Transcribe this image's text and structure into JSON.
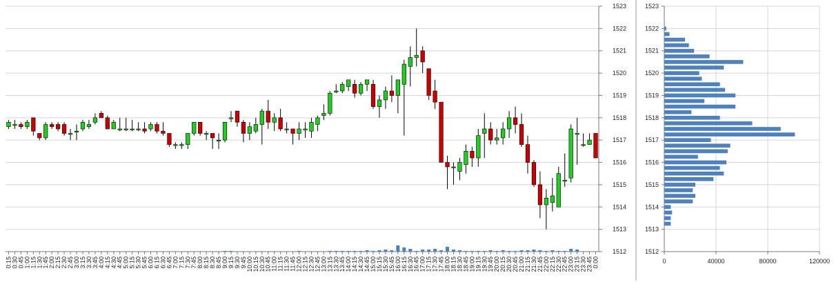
{
  "chart_data": [
    {
      "type": "candlestick",
      "y_ticks": [
        "1512",
        "1513",
        "1514",
        "1515",
        "1516",
        "1517",
        "1518",
        "1519",
        "1520",
        "1521",
        "1522",
        "1523"
      ],
      "ylim": [
        1512,
        1523
      ],
      "grid": true,
      "colors": {
        "up": "#22cc22",
        "down": "#cc0000",
        "volume": "#4f81bd",
        "wick": "#000000"
      },
      "x_labels": [
        "0:15",
        "0:30",
        "0:45",
        "1:00",
        "1:15",
        "1:30",
        "1:45",
        "2:00",
        "2:15",
        "2:30",
        "2:45",
        "3:00",
        "3:15",
        "3:30",
        "3:45",
        "4:00",
        "4:15",
        "4:30",
        "4:45",
        "5:00",
        "5:15",
        "5:30",
        "5:45",
        "6:00",
        "6:15",
        "6:30",
        "6:45",
        "7:00",
        "7:15",
        "7:30",
        "7:45",
        "8:00",
        "8:15",
        "8:30",
        "8:45",
        "9:00",
        "9:15",
        "9:30",
        "9:45",
        "10:00",
        "10:15",
        "10:30",
        "10:45",
        "11:00",
        "11:15",
        "11:30",
        "11:45",
        "12:00",
        "12:15",
        "12:30",
        "12:45",
        "13:00",
        "13:15",
        "13:30",
        "13:45",
        "14:00",
        "14:15",
        "14:30",
        "14:45",
        "15:00",
        "15:15",
        "15:30",
        "15:45",
        "16:00",
        "16:15",
        "16:30",
        "16:45",
        "17:00",
        "17:15",
        "17:30",
        "17:45",
        "18:00",
        "18:15",
        "18:30",
        "18:45",
        "19:00",
        "19:15",
        "19:30",
        "19:45",
        "20:00",
        "20:15",
        "20:30",
        "20:45",
        "21:00",
        "21:15",
        "21:30",
        "21:45",
        "22:00",
        "22:15",
        "22:30",
        "22:45",
        "23:00",
        "23:15",
        "23:30",
        "23:45",
        "0:00"
      ],
      "ohlc": [
        [
          1517.6,
          1517.9,
          1517.5,
          1517.8
        ],
        [
          1517.7,
          1517.9,
          1517.5,
          1517.7
        ],
        [
          1517.7,
          1517.8,
          1517.5,
          1517.6
        ],
        [
          1517.6,
          1517.9,
          1517.5,
          1517.8
        ],
        [
          1518.0,
          1518.0,
          1517.2,
          1517.4
        ],
        [
          1517.3,
          1517.3,
          1517.0,
          1517.1
        ],
        [
          1517.1,
          1517.8,
          1517.0,
          1517.7
        ],
        [
          1517.7,
          1517.8,
          1517.5,
          1517.6
        ],
        [
          1517.7,
          1517.8,
          1517.4,
          1517.5
        ],
        [
          1517.7,
          1517.8,
          1517.2,
          1517.3
        ],
        [
          1517.3,
          1517.5,
          1517.0,
          1517.3
        ],
        [
          1517.4,
          1517.7,
          1517.0,
          1517.4
        ],
        [
          1517.5,
          1517.9,
          1517.4,
          1517.8
        ],
        [
          1517.6,
          1517.9,
          1517.5,
          1517.7
        ],
        [
          1517.8,
          1518.2,
          1517.7,
          1518.0
        ],
        [
          1518.2,
          1518.3,
          1518.1,
          1518.0
        ],
        [
          1518.0,
          1518.1,
          1517.5,
          1517.5
        ],
        [
          1517.5,
          1517.9,
          1517.5,
          1517.8
        ],
        [
          1517.5,
          1518.0,
          1517.4,
          1517.5
        ],
        [
          1517.5,
          1518.0,
          1517.4,
          1517.5
        ],
        [
          1517.5,
          1517.9,
          1517.4,
          1517.5
        ],
        [
          1517.5,
          1517.8,
          1517.4,
          1517.5
        ],
        [
          1517.5,
          1517.8,
          1517.3,
          1517.4
        ],
        [
          1517.5,
          1517.8,
          1517.4,
          1517.7
        ],
        [
          1517.7,
          1517.8,
          1517.3,
          1517.4
        ],
        [
          1517.4,
          1517.8,
          1517.2,
          1517.3
        ],
        [
          1517.3,
          1517.3,
          1516.7,
          1516.8
        ],
        [
          1516.8,
          1516.9,
          1516.6,
          1516.8
        ],
        [
          1516.8,
          1516.9,
          1516.6,
          1516.8
        ],
        [
          1516.8,
          1517.3,
          1516.6,
          1517.3
        ],
        [
          1517.3,
          1517.8,
          1517.2,
          1517.8
        ],
        [
          1517.8,
          1517.8,
          1517.2,
          1517.3
        ],
        [
          1517.3,
          1517.4,
          1517.0,
          1517.3
        ],
        [
          1517.3,
          1517.3,
          1516.6,
          1517.1
        ],
        [
          1517.0,
          1517.3,
          1516.6,
          1517.0
        ],
        [
          1517.0,
          1517.8,
          1516.9,
          1517.8
        ],
        [
          1518.0,
          1518.3,
          1517.8,
          1518.0
        ],
        [
          1518.3,
          1518.3,
          1517.6,
          1517.8
        ],
        [
          1517.8,
          1517.9,
          1516.9,
          1517.3
        ],
        [
          1517.3,
          1517.8,
          1517.0,
          1517.6
        ],
        [
          1517.4,
          1518.0,
          1517.3,
          1517.7
        ],
        [
          1517.7,
          1518.4,
          1516.8,
          1518.3
        ],
        [
          1518.3,
          1518.8,
          1517.5,
          1517.8
        ],
        [
          1517.8,
          1518.2,
          1517.4,
          1518.0
        ],
        [
          1518.0,
          1518.4,
          1517.4,
          1517.5
        ],
        [
          1517.5,
          1517.8,
          1517.3,
          1517.5
        ],
        [
          1517.5,
          1517.5,
          1516.8,
          1517.3
        ],
        [
          1517.3,
          1517.8,
          1517.0,
          1517.5
        ],
        [
          1517.5,
          1517.8,
          1517.1,
          1517.5
        ],
        [
          1517.4,
          1518.0,
          1517.1,
          1517.8
        ],
        [
          1517.7,
          1518.1,
          1517.4,
          1518.0
        ],
        [
          1518.1,
          1518.6,
          1517.9,
          1518.2
        ],
        [
          1518.2,
          1519.2,
          1518.1,
          1519.1
        ],
        [
          1519.2,
          1519.5,
          1519.1,
          1519.2
        ],
        [
          1519.2,
          1519.6,
          1519.1,
          1519.5
        ],
        [
          1519.4,
          1519.7,
          1519.2,
          1519.7
        ],
        [
          1519.5,
          1519.7,
          1518.9,
          1519.1
        ],
        [
          1519.1,
          1519.6,
          1519.0,
          1519.5
        ],
        [
          1519.5,
          1519.7,
          1519.2,
          1519.7
        ],
        [
          1519.5,
          1519.7,
          1518.4,
          1518.5
        ],
        [
          1518.5,
          1519.0,
          1518.0,
          1518.8
        ],
        [
          1518.8,
          1519.4,
          1518.4,
          1519.2
        ],
        [
          1519.2,
          1519.9,
          1518.7,
          1519.0
        ],
        [
          1519.0,
          1519.7,
          1518.2,
          1519.7
        ],
        [
          1519.5,
          1520.6,
          1517.2,
          1520.4
        ],
        [
          1520.3,
          1521.2,
          1519.4,
          1520.7
        ],
        [
          1520.7,
          1522.0,
          1520.3,
          1520.8
        ],
        [
          1521.0,
          1521.2,
          1520.0,
          1520.5
        ],
        [
          1520.2,
          1520.2,
          1518.8,
          1519.0
        ],
        [
          1519.2,
          1519.7,
          1518.4,
          1518.7
        ],
        [
          1518.7,
          1518.7,
          1516.0,
          1516.0
        ],
        [
          1516.0,
          1516.3,
          1514.8,
          1515.8
        ],
        [
          1515.8,
          1516.0,
          1515.0,
          1515.8
        ],
        [
          1515.6,
          1516.2,
          1515.2,
          1516.0
        ],
        [
          1515.9,
          1516.8,
          1515.5,
          1516.5
        ],
        [
          1516.5,
          1516.7,
          1515.8,
          1516.2
        ],
        [
          1516.2,
          1517.5,
          1515.8,
          1517.2
        ],
        [
          1517.3,
          1518.2,
          1516.2,
          1517.5
        ],
        [
          1517.5,
          1517.8,
          1516.8,
          1517.0
        ],
        [
          1517.0,
          1517.5,
          1516.8,
          1517.1
        ],
        [
          1517.1,
          1517.8,
          1516.8,
          1517.5
        ],
        [
          1517.5,
          1518.3,
          1517.1,
          1518.0
        ],
        [
          1518.0,
          1518.5,
          1517.3,
          1517.7
        ],
        [
          1517.7,
          1518.2,
          1516.7,
          1516.8
        ],
        [
          1516.8,
          1517.2,
          1515.5,
          1516.0
        ],
        [
          1516.0,
          1516.1,
          1514.9,
          1515.0
        ],
        [
          1515.0,
          1515.6,
          1513.5,
          1514.1
        ],
        [
          1514.1,
          1514.8,
          1513.0,
          1514.4
        ],
        [
          1514.2,
          1515.3,
          1513.8,
          1514.5
        ],
        [
          1514.0,
          1515.8,
          1514.1,
          1515.5
        ],
        [
          1515.2,
          1516.4,
          1514.9,
          1515.2
        ],
        [
          1515.3,
          1517.7,
          1515.1,
          1517.5
        ],
        [
          1517.3,
          1518.0,
          1515.9,
          1517.3
        ],
        [
          1516.8,
          1517.3,
          1516.7,
          1516.8
        ],
        [
          1516.8,
          1517.3,
          1516.8,
          1517.0
        ],
        [
          1517.3,
          1517.3,
          1516.2,
          1516.2
        ]
      ],
      "volume": [
        0,
        0,
        0,
        0,
        0,
        0,
        0,
        0,
        0,
        0,
        0,
        0,
        0,
        0,
        0,
        0,
        0,
        0,
        0,
        0,
        0,
        0,
        0,
        0,
        0,
        0,
        0,
        0,
        0,
        0,
        0,
        0,
        0,
        0,
        0,
        1,
        1,
        0,
        0,
        0,
        0,
        0,
        0,
        0,
        0,
        0,
        0,
        1,
        0,
        0,
        0,
        0,
        1,
        1,
        1,
        1,
        1,
        1,
        2,
        1,
        2,
        3,
        2,
        9,
        6,
        4,
        1,
        3,
        3,
        4,
        2,
        7,
        3,
        2,
        1,
        1,
        1,
        1,
        2,
        1,
        2,
        1,
        1,
        2,
        2,
        3,
        2,
        1,
        2,
        1,
        1,
        4,
        3,
        0,
        0,
        0
      ],
      "volume_scale_max": 30
    },
    {
      "type": "bar",
      "orientation": "horizontal",
      "y_ticks": [
        "1512",
        "1513",
        "1514",
        "1515",
        "1516",
        "1517",
        "1518",
        "1519",
        "1520",
        "1521",
        "1522",
        "1523"
      ],
      "x_ticks": [
        "0",
        "40000",
        "80000",
        "120000"
      ],
      "xlim": [
        0,
        120000
      ],
      "ylim": [
        1512,
        1523
      ],
      "grid": true,
      "color": "#4f81bd",
      "levels": [
        1513.25,
        1513.5,
        1513.75,
        1514.0,
        1514.25,
        1514.5,
        1514.75,
        1515.0,
        1515.25,
        1515.5,
        1515.75,
        1516.0,
        1516.25,
        1516.5,
        1516.75,
        1517.0,
        1517.25,
        1517.5,
        1517.75,
        1518.0,
        1518.25,
        1518.5,
        1518.75,
        1519.0,
        1519.25,
        1519.5,
        1519.75,
        1520.0,
        1520.25,
        1520.5,
        1520.75,
        1521.0,
        1521.25,
        1521.5,
        1521.75,
        1522.0
      ],
      "values": [
        5000,
        5000,
        6000,
        5000,
        22000,
        24000,
        22000,
        24000,
        38000,
        46000,
        43000,
        48000,
        26000,
        49000,
        51000,
        36000,
        101000,
        90000,
        68000,
        43000,
        21000,
        55000,
        31000,
        55000,
        47000,
        43000,
        29000,
        27000,
        46000,
        61000,
        35000,
        23000,
        19000,
        16000,
        4000,
        1500
      ]
    }
  ]
}
